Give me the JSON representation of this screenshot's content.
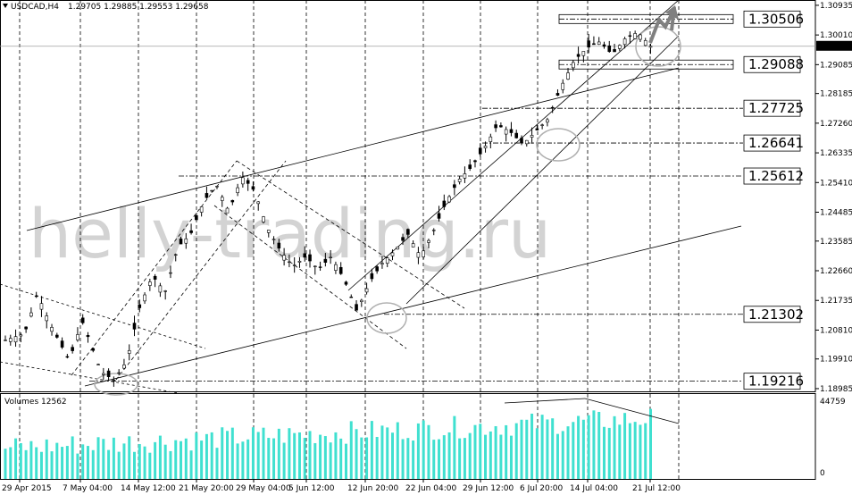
{
  "chart_data": [
    {
      "type": "candlestick",
      "header": {
        "symbol_tf": "USDCAD,H4",
        "ohlc": [
          "1.29705",
          "1.29885",
          "1.29553",
          "1.29658"
        ]
      },
      "watermark": "helly-trading.ru",
      "current_price": {
        "value": 1.29658,
        "label": "1.29658"
      },
      "ylim": [
        1.189,
        1.311
      ],
      "y_ticks": [
        {
          "value": 1.30935,
          "label": "1.30935"
        },
        {
          "value": 1.3001,
          "label": "1.30010"
        },
        {
          "value": 1.29085,
          "label": "1.29085"
        },
        {
          "value": 1.28185,
          "label": "1.28185"
        },
        {
          "value": 1.2726,
          "label": "1.27260"
        },
        {
          "value": 1.26335,
          "label": "1.26335"
        },
        {
          "value": 1.2541,
          "label": "1.25410"
        },
        {
          "value": 1.24485,
          "label": "1.24485"
        },
        {
          "value": 1.23585,
          "label": "1.23585"
        },
        {
          "value": 1.2266,
          "label": "1.22660"
        },
        {
          "value": 1.21735,
          "label": "1.21735"
        },
        {
          "value": 1.2081,
          "label": "1.20810"
        },
        {
          "value": 1.1991,
          "label": "1.19910"
        },
        {
          "value": 1.18985,
          "label": "1.18985"
        }
      ],
      "x_ticks": [
        "29 Apr 2015",
        "7 May 04:00",
        "14 May 12:00",
        "21 May 20:00",
        "29 May 04:00",
        "5 Jun 12:00",
        "12 Jun 20:00",
        "22 Jun 04:00",
        "29 Jun 12:00",
        "6 Jul 20:00",
        "14 Jul 04:00",
        "21 Jul 12:00"
      ],
      "levels": [
        {
          "value": 1.30506,
          "label": "1.30506",
          "boxed": true
        },
        {
          "value": 1.29088,
          "label": "1.29088",
          "boxed": true
        },
        {
          "value": 1.27725,
          "label": "1.27725",
          "boxed": false
        },
        {
          "value": 1.26641,
          "label": "1.26641",
          "boxed": false
        },
        {
          "value": 1.25612,
          "label": "1.25612",
          "boxed": false
        },
        {
          "value": 1.21302,
          "label": "1.21302",
          "boxed": false
        },
        {
          "value": 1.19216,
          "label": "1.19216",
          "boxed": false
        }
      ],
      "price_path": [
        [
          0,
          1.205
        ],
        [
          3,
          1.207
        ],
        [
          5,
          1.2195
        ],
        [
          7,
          1.21
        ],
        [
          10,
          1.1985
        ],
        [
          12,
          1.211
        ],
        [
          15,
          1.195
        ],
        [
          17,
          1.1925
        ],
        [
          19,
          1.1985
        ],
        [
          21,
          1.215
        ],
        [
          23,
          1.225
        ],
        [
          25,
          1.22
        ],
        [
          27,
          1.234
        ],
        [
          29,
          1.238
        ],
        [
          31,
          1.248
        ],
        [
          33,
          1.2535
        ],
        [
          35,
          1.245
        ],
        [
          37,
          1.256
        ],
        [
          39,
          1.2515
        ],
        [
          41,
          1.24
        ],
        [
          43,
          1.233
        ],
        [
          45,
          1.228
        ],
        [
          47,
          1.231
        ],
        [
          49,
          1.227
        ],
        [
          51,
          1.231
        ],
        [
          53,
          1.224
        ],
        [
          55,
          1.214
        ],
        [
          57,
          1.223
        ],
        [
          59,
          1.229
        ],
        [
          61,
          1.233
        ],
        [
          63,
          1.238
        ],
        [
          65,
          1.231
        ],
        [
          67,
          1.239
        ],
        [
          69,
          1.248
        ],
        [
          71,
          1.255
        ],
        [
          73,
          1.259
        ],
        [
          75,
          1.265
        ],
        [
          77,
          1.272
        ],
        [
          79,
          1.27
        ],
        [
          81,
          1.266
        ],
        [
          83,
          1.27
        ],
        [
          85,
          1.274
        ],
        [
          87,
          1.284
        ],
        [
          89,
          1.292
        ],
        [
          91,
          1.296
        ],
        [
          93,
          1.298
        ],
        [
          95,
          1.294
        ],
        [
          97,
          1.299
        ],
        [
          99,
          1.301
        ],
        [
          101,
          1.2966
        ]
      ],
      "volume": {
        "title": "Volumes 12562",
        "max_label": "44759",
        "zero_label": "0",
        "max": 44759
      },
      "colors": {
        "candle": "#000000",
        "volume_bar": "#40e0d0",
        "watermark": "#d3d3d3",
        "lines": "#000000",
        "circles": "#b0b0b0",
        "arrows": "#808080"
      }
    }
  ]
}
